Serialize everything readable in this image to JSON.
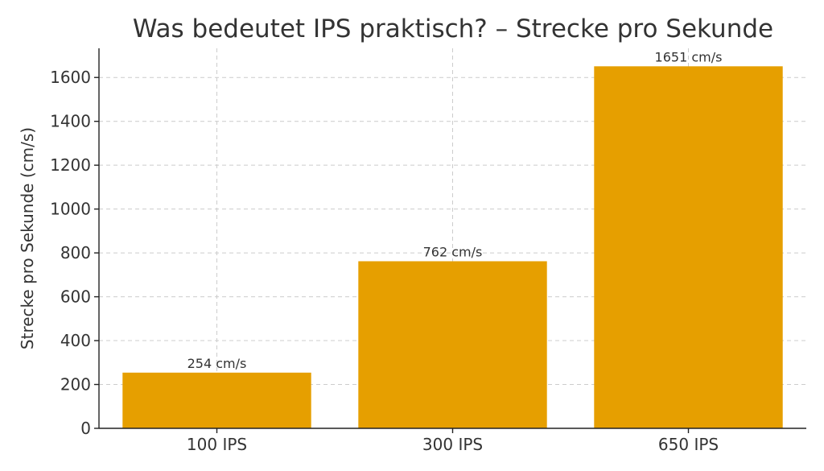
{
  "chart_data": {
    "type": "bar",
    "title": "Was bedeutet IPS praktisch? – Strecke pro Sekunde",
    "xlabel": "",
    "ylabel": "Strecke pro Sekunde (cm/s)",
    "categories": [
      "100 IPS",
      "300 IPS",
      "650 IPS"
    ],
    "values": [
      254,
      762,
      1651
    ],
    "data_labels": [
      "254 cm/s",
      "762 cm/s",
      "1651 cm/s"
    ],
    "y_ticks": [
      0,
      200,
      400,
      600,
      800,
      1000,
      1200,
      1400,
      1600
    ],
    "ylim": [
      0,
      1733
    ],
    "grid": true,
    "bar_color": "#e69f00"
  }
}
